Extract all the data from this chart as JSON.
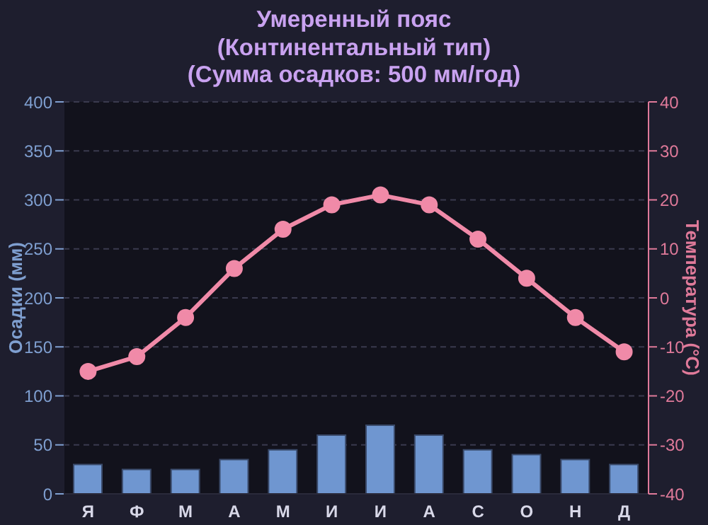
{
  "chart_data": {
    "type": "bar",
    "title": "Умеренный пояс\n(Континентальный тип)\n(Сумма осадков: 500 мм/год)",
    "ylabel": "Осадки (мм)",
    "y2label": "Температура (°C)",
    "categories": [
      "Я",
      "Ф",
      "М",
      "А",
      "М",
      "И",
      "И",
      "А",
      "С",
      "О",
      "Н",
      "Д"
    ],
    "series": [
      {
        "color": "#6f96d0",
        "values": [
          30,
          25,
          25,
          35,
          45,
          60,
          70,
          60,
          45,
          40,
          35,
          30
        ]
      },
      {
        "type": "line",
        "axis": "y2",
        "color": "#f08aa8",
        "values": [
          -15,
          -12,
          -4,
          6,
          14,
          19,
          21,
          19,
          12,
          4,
          -4,
          -11
        ]
      }
    ],
    "ylim": [
      0,
      400
    ],
    "yticks": [
      0,
      50,
      100,
      150,
      200,
      250,
      300,
      350,
      400
    ],
    "y2lim": [
      -40,
      40
    ],
    "y2ticks": [
      -40,
      -30,
      -20,
      -10,
      0,
      10,
      20,
      30,
      40
    ],
    "grid": "y",
    "legend": false,
    "marker": "circle",
    "line_style": "solid"
  }
}
